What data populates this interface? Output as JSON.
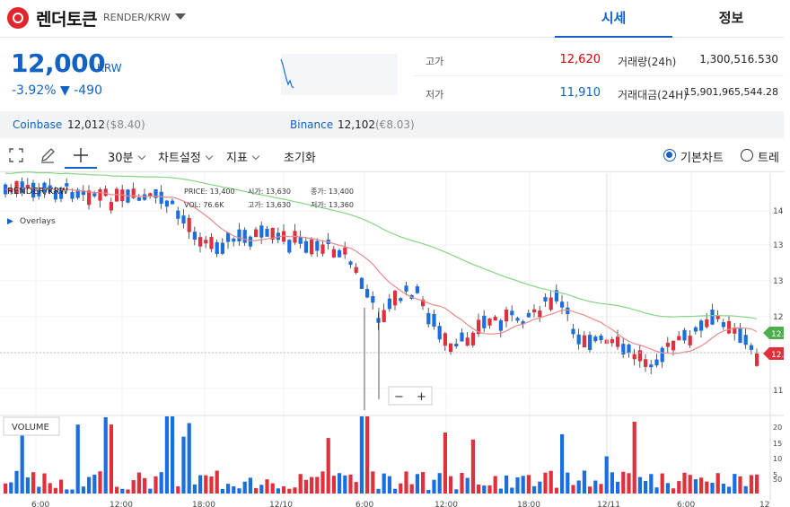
{
  "header": {
    "coin_name": "렌더토큰",
    "pair": "RENDER/KRW",
    "tabs": [
      "시세",
      "정보"
    ]
  },
  "price": {
    "value": "12,000",
    "unit": "KRW",
    "change_pct": "-3.92%",
    "change_amt": "▼ -490"
  },
  "stats": {
    "high_label": "고가",
    "high": "12,620",
    "low_label": "저가",
    "low": "11,910",
    "vol_label": "거래량(24h)",
    "vol": "1,300,516.530",
    "amt_label": "거래대금(24H)",
    "amt": "15,901,965,544.28"
  },
  "exchanges": [
    {
      "name": "Coinbase",
      "price": "12,012",
      "sub": "($8.40)"
    },
    {
      "name": "Binance",
      "price": "12,102",
      "sub": "(€8.03)"
    }
  ],
  "toolbar": {
    "interval": "30분",
    "chart_settings": "차트설정",
    "indicators": "지표",
    "reset": "초기화",
    "basic_chart": "기본차트",
    "trading": "트레"
  },
  "chart": {
    "pair_label": "RENDER/KRW",
    "overlays": "Overlays",
    "legend_price": "PRICE: 13,400",
    "legend_open": "시가: 13,630",
    "legend_close": "종가: 13,400",
    "legend_vol": "VOL: 76.6K",
    "legend_high": "고가: 13,630",
    "legend_low": "저가: 13,360",
    "volume_label": "VOLUME",
    "y_ticks": [
      "14",
      "13",
      "13",
      "12",
      "11"
    ],
    "vol_ticks": [
      "20",
      "15",
      "10",
      "5",
      "50"
    ],
    "x_ticks": [
      "6:00",
      "12:00",
      "18:00",
      "12/10",
      "6:00",
      "12:00",
      "18:00",
      "12/11",
      "6:00",
      "12"
    ],
    "price_tag_green": "12.",
    "price_tag_red": "12.0",
    "zoom_minus": "−",
    "zoom_plus": "+",
    "up_color": "#e0303c",
    "down_color": "#1a6ee0"
  }
}
